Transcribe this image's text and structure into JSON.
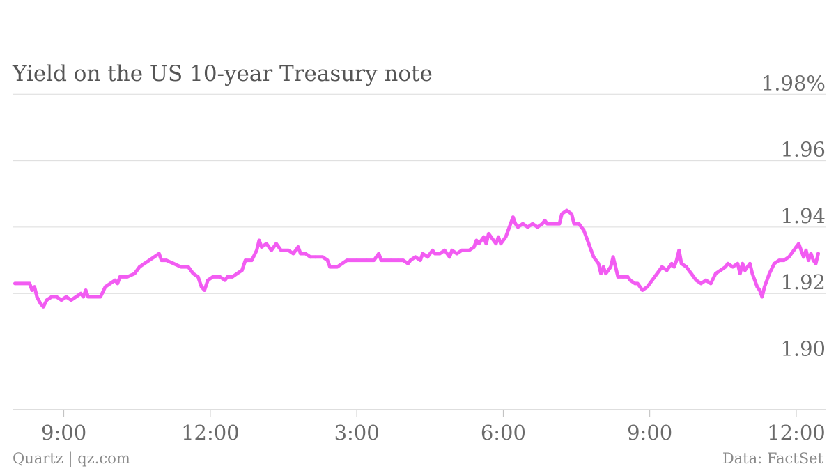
{
  "chart_data": {
    "type": "line",
    "title": "Yield on the US 10-year Treasury note",
    "xlabel": "",
    "ylabel": "",
    "ylim": [
      1.885,
      2.0
    ],
    "y_ticks": [
      "1.98%",
      "1.96",
      "1.94",
      "1.92",
      "1.90"
    ],
    "y_tick_values": [
      1.98,
      1.96,
      1.94,
      1.92,
      1.9
    ],
    "x_ticks": [
      "9:00",
      "12:00",
      "3:00",
      "6:00",
      "9:00",
      "12:00"
    ],
    "x_tick_positions": [
      9,
      12,
      15,
      18,
      21,
      24
    ],
    "x_range": [
      7.95,
      24.6
    ],
    "grid": true,
    "series": [
      {
        "color": "#f25cf2",
        "points": [
          [
            8.0,
            1.923
          ],
          [
            8.3,
            1.923
          ],
          [
            8.35,
            1.921
          ],
          [
            8.4,
            1.922
          ],
          [
            8.45,
            1.919
          ],
          [
            8.52,
            1.917
          ],
          [
            8.58,
            1.916
          ],
          [
            8.65,
            1.918
          ],
          [
            8.75,
            1.919
          ],
          [
            8.85,
            1.919
          ],
          [
            8.95,
            1.918
          ],
          [
            9.05,
            1.919
          ],
          [
            9.15,
            1.918
          ],
          [
            9.25,
            1.919
          ],
          [
            9.35,
            1.92
          ],
          [
            9.4,
            1.919
          ],
          [
            9.45,
            1.921
          ],
          [
            9.5,
            1.919
          ],
          [
            9.6,
            1.919
          ],
          [
            9.75,
            1.919
          ],
          [
            9.85,
            1.922
          ],
          [
            9.95,
            1.923
          ],
          [
            10.05,
            1.924
          ],
          [
            10.1,
            1.923
          ],
          [
            10.15,
            1.925
          ],
          [
            10.3,
            1.925
          ],
          [
            10.45,
            1.926
          ],
          [
            10.55,
            1.928
          ],
          [
            10.65,
            1.929
          ],
          [
            10.75,
            1.93
          ],
          [
            10.85,
            1.931
          ],
          [
            10.95,
            1.932
          ],
          [
            11.0,
            1.93
          ],
          [
            11.1,
            1.93
          ],
          [
            11.25,
            1.929
          ],
          [
            11.4,
            1.928
          ],
          [
            11.55,
            1.928
          ],
          [
            11.65,
            1.926
          ],
          [
            11.75,
            1.925
          ],
          [
            11.82,
            1.922
          ],
          [
            11.88,
            1.921
          ],
          [
            11.95,
            1.924
          ],
          [
            12.05,
            1.925
          ],
          [
            12.2,
            1.925
          ],
          [
            12.3,
            1.924
          ],
          [
            12.35,
            1.925
          ],
          [
            12.45,
            1.925
          ],
          [
            12.55,
            1.926
          ],
          [
            12.65,
            1.927
          ],
          [
            12.72,
            1.93
          ],
          [
            12.85,
            1.93
          ],
          [
            12.95,
            1.933
          ],
          [
            13.0,
            1.936
          ],
          [
            13.05,
            1.934
          ],
          [
            13.15,
            1.935
          ],
          [
            13.25,
            1.933
          ],
          [
            13.35,
            1.935
          ],
          [
            13.45,
            1.933
          ],
          [
            13.6,
            1.933
          ],
          [
            13.7,
            1.932
          ],
          [
            13.8,
            1.934
          ],
          [
            13.85,
            1.932
          ],
          [
            13.95,
            1.932
          ],
          [
            14.05,
            1.931
          ],
          [
            14.15,
            1.931
          ],
          [
            14.3,
            1.931
          ],
          [
            14.4,
            1.93
          ],
          [
            14.45,
            1.928
          ],
          [
            14.6,
            1.928
          ],
          [
            14.7,
            1.929
          ],
          [
            14.8,
            1.93
          ],
          [
            15.0,
            1.93
          ],
          [
            15.2,
            1.93
          ],
          [
            15.35,
            1.93
          ],
          [
            15.45,
            1.932
          ],
          [
            15.5,
            1.93
          ],
          [
            15.7,
            1.93
          ],
          [
            15.85,
            1.93
          ],
          [
            15.95,
            1.93
          ],
          [
            16.05,
            1.929
          ],
          [
            16.1,
            1.93
          ],
          [
            16.2,
            1.931
          ],
          [
            16.3,
            1.93
          ],
          [
            16.35,
            1.932
          ],
          [
            16.45,
            1.931
          ],
          [
            16.55,
            1.933
          ],
          [
            16.6,
            1.932
          ],
          [
            16.7,
            1.932
          ],
          [
            16.8,
            1.933
          ],
          [
            16.9,
            1.931
          ],
          [
            16.95,
            1.933
          ],
          [
            17.05,
            1.932
          ],
          [
            17.15,
            1.933
          ],
          [
            17.3,
            1.933
          ],
          [
            17.4,
            1.934
          ],
          [
            17.45,
            1.936
          ],
          [
            17.5,
            1.935
          ],
          [
            17.6,
            1.937
          ],
          [
            17.65,
            1.935
          ],
          [
            17.7,
            1.938
          ],
          [
            17.75,
            1.937
          ],
          [
            17.85,
            1.935
          ],
          [
            17.9,
            1.937
          ],
          [
            17.95,
            1.935
          ],
          [
            18.05,
            1.937
          ],
          [
            18.1,
            1.939
          ],
          [
            18.15,
            1.941
          ],
          [
            18.2,
            1.943
          ],
          [
            18.25,
            1.941
          ],
          [
            18.3,
            1.94
          ],
          [
            18.4,
            1.941
          ],
          [
            18.5,
            1.94
          ],
          [
            18.6,
            1.941
          ],
          [
            18.7,
            1.94
          ],
          [
            18.8,
            1.941
          ],
          [
            18.85,
            1.942
          ],
          [
            18.9,
            1.941
          ],
          [
            19.05,
            1.941
          ],
          [
            19.15,
            1.941
          ],
          [
            19.2,
            1.944
          ],
          [
            19.3,
            1.945
          ],
          [
            19.4,
            1.944
          ],
          [
            19.45,
            1.941
          ],
          [
            19.55,
            1.941
          ],
          [
            19.65,
            1.939
          ],
          [
            19.75,
            1.935
          ],
          [
            19.85,
            1.931
          ],
          [
            19.95,
            1.929
          ],
          [
            20.0,
            1.926
          ],
          [
            20.05,
            1.928
          ],
          [
            20.1,
            1.926
          ],
          [
            20.15,
            1.927
          ],
          [
            20.2,
            1.928
          ],
          [
            20.25,
            1.931
          ],
          [
            20.3,
            1.928
          ],
          [
            20.35,
            1.925
          ],
          [
            20.45,
            1.925
          ],
          [
            20.55,
            1.925
          ],
          [
            20.6,
            1.924
          ],
          [
            20.7,
            1.923
          ],
          [
            20.75,
            1.923
          ],
          [
            20.85,
            1.921
          ],
          [
            20.95,
            1.922
          ],
          [
            21.05,
            1.924
          ],
          [
            21.15,
            1.926
          ],
          [
            21.25,
            1.928
          ],
          [
            21.35,
            1.927
          ],
          [
            21.45,
            1.929
          ],
          [
            21.5,
            1.928
          ],
          [
            21.55,
            1.93
          ],
          [
            21.6,
            1.933
          ],
          [
            21.65,
            1.929
          ],
          [
            21.75,
            1.928
          ],
          [
            21.85,
            1.926
          ],
          [
            21.95,
            1.924
          ],
          [
            22.05,
            1.923
          ],
          [
            22.15,
            1.924
          ],
          [
            22.25,
            1.923
          ],
          [
            22.35,
            1.926
          ],
          [
            22.45,
            1.927
          ],
          [
            22.55,
            1.928
          ],
          [
            22.6,
            1.929
          ],
          [
            22.7,
            1.928
          ],
          [
            22.8,
            1.929
          ],
          [
            22.85,
            1.926
          ],
          [
            22.9,
            1.929
          ],
          [
            22.95,
            1.927
          ],
          [
            23.05,
            1.929
          ],
          [
            23.1,
            1.926
          ],
          [
            23.15,
            1.924
          ],
          [
            23.2,
            1.922
          ],
          [
            23.25,
            1.921
          ],
          [
            23.3,
            1.919
          ],
          [
            23.35,
            1.922
          ],
          [
            23.45,
            1.926
          ],
          [
            23.55,
            1.929
          ],
          [
            23.65,
            1.93
          ],
          [
            23.75,
            1.93
          ],
          [
            23.85,
            1.931
          ],
          [
            23.95,
            1.933
          ],
          [
            24.0,
            1.934
          ],
          [
            24.05,
            1.935
          ],
          [
            24.1,
            1.933
          ],
          [
            24.15,
            1.931
          ],
          [
            24.2,
            1.933
          ],
          [
            24.25,
            1.93
          ],
          [
            24.3,
            1.932
          ],
          [
            24.35,
            1.93
          ],
          [
            24.4,
            1.929
          ],
          [
            24.45,
            1.932
          ]
        ]
      }
    ]
  },
  "source_left": "Quartz | qz.com",
  "source_right": "Data: FactSet"
}
